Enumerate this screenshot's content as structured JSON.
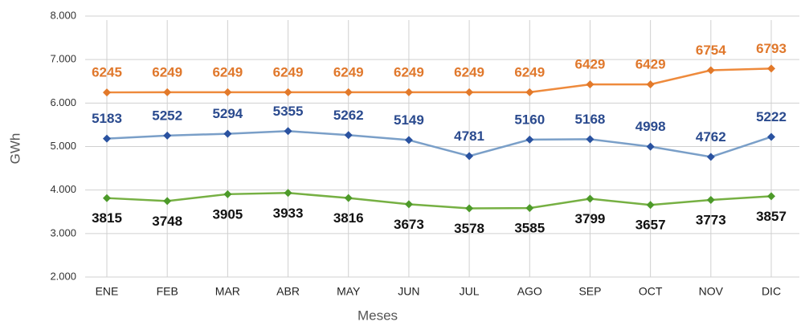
{
  "chart_data": {
    "type": "line",
    "categories": [
      "ENE",
      "FEB",
      "MAR",
      "ABR",
      "MAY",
      "JUN",
      "JUL",
      "AGO",
      "SEP",
      "OCT",
      "NOV",
      "DIC"
    ],
    "series": [
      {
        "color": "#ee8a3c",
        "marker_color": "#e2792a",
        "label_color": "#e0782c",
        "label_position": "above",
        "values": [
          6245,
          6249,
          6249,
          6249,
          6249,
          6249,
          6249,
          6249,
          6429,
          6429,
          6754,
          6793
        ]
      },
      {
        "color": "#7a9fc8",
        "marker_color": "#2a52a0",
        "label_color": "#2a4a8e",
        "label_position": "above",
        "values": [
          5183,
          5252,
          5294,
          5355,
          5262,
          5149,
          4781,
          5160,
          5168,
          4998,
          4762,
          5222
        ]
      },
      {
        "color": "#76b043",
        "marker_color": "#4d9a2a",
        "label_color": "#111111",
        "label_position": "below",
        "values": [
          3815,
          3748,
          3905,
          3933,
          3816,
          3673,
          3578,
          3585,
          3799,
          3657,
          3773,
          3857
        ]
      }
    ],
    "ylabel": "GWh",
    "xlabel": "Meses",
    "ylim": [
      2000,
      8000
    ],
    "yticks": [
      {
        "value": 2000,
        "label": "2.000"
      },
      {
        "value": 3000,
        "label": "3.000"
      },
      {
        "value": 4000,
        "label": "4.000"
      },
      {
        "value": 5000,
        "label": "5.000"
      },
      {
        "value": 6000,
        "label": "6.000"
      },
      {
        "value": 7000,
        "label": "7.000"
      },
      {
        "value": 8000,
        "label": "8.000"
      }
    ],
    "grid": true
  }
}
